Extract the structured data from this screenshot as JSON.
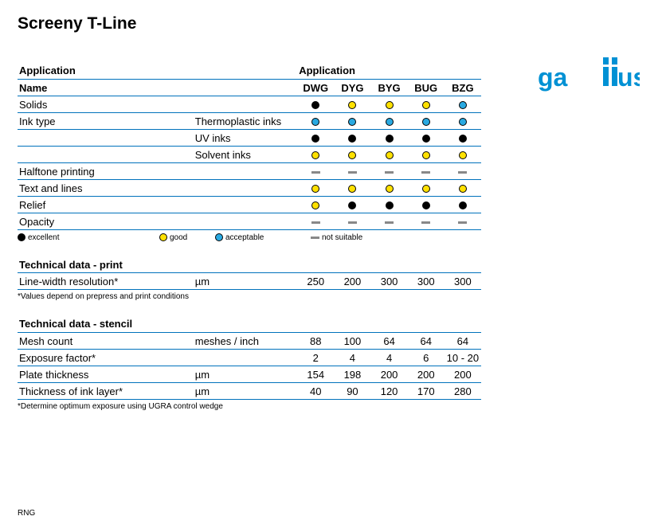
{
  "title": "Screeny T-Line",
  "brand": "gallus",
  "brand_color": "#0091d4",
  "border_color": "#0072bc",
  "ratings": {
    "excellent_color": "#000000",
    "good_color": "#ffe100",
    "acceptable_color": "#29a9e1",
    "not_suitable_color": "#888888",
    "excellent_label": "excellent",
    "good_label": "good",
    "acceptable_label": "acceptable",
    "not_suitable_label": "not suitable"
  },
  "columns_header_left": "Application",
  "columns_header_right": "Application",
  "columns": [
    "DWG",
    "DYG",
    "BYG",
    "BUG",
    "BZG"
  ],
  "app_rows": [
    {
      "name": "Solids",
      "sub": "",
      "vals": [
        "excellent",
        "good",
        "good",
        "good",
        "acceptable"
      ]
    },
    {
      "name": "Ink type",
      "sub": "Thermoplastic inks",
      "vals": [
        "acceptable",
        "acceptable",
        "acceptable",
        "acceptable",
        "acceptable"
      ]
    },
    {
      "name": "",
      "sub": "UV inks",
      "vals": [
        "excellent",
        "excellent",
        "excellent",
        "excellent",
        "excellent"
      ]
    },
    {
      "name": "",
      "sub": "Solvent inks",
      "vals": [
        "good",
        "good",
        "good",
        "good",
        "good"
      ]
    },
    {
      "name": "Halftone printing",
      "sub": "",
      "vals": [
        "ns",
        "ns",
        "ns",
        "ns",
        "ns"
      ]
    },
    {
      "name": "Text and lines",
      "sub": "",
      "vals": [
        "good",
        "good",
        "good",
        "good",
        "good"
      ]
    },
    {
      "name": "Relief",
      "sub": "",
      "vals": [
        "good",
        "excellent",
        "excellent",
        "excellent",
        "excellent"
      ]
    },
    {
      "name": "Opacity",
      "sub": "",
      "vals": [
        "ns",
        "ns",
        "ns",
        "ns",
        "ns"
      ]
    }
  ],
  "name_label": "Name",
  "tech_print": {
    "title": "Technical data - print",
    "rows": [
      {
        "name": "Line-width resolution*",
        "unit": "µm",
        "vals": [
          "250",
          "200",
          "300",
          "300",
          "300"
        ]
      }
    ],
    "footnote": "*Values depend on prepress and print conditions"
  },
  "tech_stencil": {
    "title": "Technical data - stencil",
    "rows": [
      {
        "name": "Mesh count",
        "unit": "meshes / inch",
        "vals": [
          "88",
          "100",
          "64",
          "64",
          "64"
        ]
      },
      {
        "name": "Exposure factor*",
        "unit": "",
        "vals": [
          "2",
          "4",
          "4",
          "6",
          "10 - 20"
        ]
      },
      {
        "name": "Plate thickness",
        "unit": "µm",
        "vals": [
          "154",
          "198",
          "200",
          "200",
          "200"
        ]
      },
      {
        "name": "Thickness of ink layer*",
        "unit": "µm",
        "vals": [
          "40",
          "90",
          "120",
          "170",
          "280"
        ]
      }
    ],
    "footnote": "*Determine optimum exposure using UGRA control wedge"
  },
  "footer": "RNG"
}
